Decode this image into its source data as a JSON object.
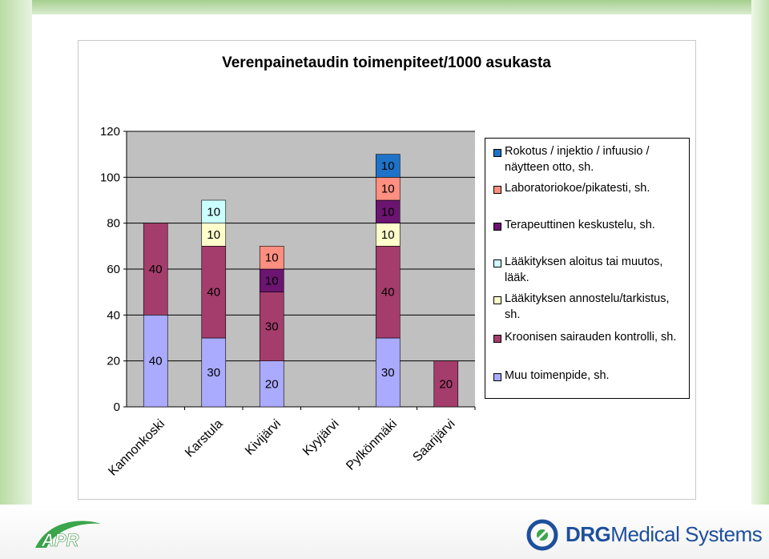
{
  "chart_data": {
    "type": "bar",
    "stacked": true,
    "title": "Verenpainetaudin toimenpiteet/1000 asukasta",
    "categories": [
      "Kannonkoski",
      "Karstula",
      "Kivijärvi",
      "Kyyjärvi",
      "Pylkönmäki",
      "Saarijärvi"
    ],
    "ylim": [
      0,
      120
    ],
    "yticks": [
      "0",
      "20",
      "40",
      "60",
      "80",
      "100",
      "120"
    ],
    "grid": "horizontal",
    "legend_position": "right",
    "series": [
      {
        "name": "Muu toimenpide, sh.",
        "color": "#aaaaff",
        "values": [
          40,
          30,
          20,
          0,
          30,
          0
        ]
      },
      {
        "name": "Kroonisen sairauden kontrolli, sh.",
        "color": "#a43d6b",
        "values": [
          40,
          40,
          30,
          0,
          40,
          20
        ]
      },
      {
        "name": "Lääkityksen annostelu/tarkistus, sh.",
        "color": "#ffffcc",
        "values": [
          0,
          10,
          0,
          0,
          10,
          0
        ]
      },
      {
        "name": "Lääkityksen aloitus tai muutos, lääk.",
        "color": "#ccffff",
        "values": [
          0,
          10,
          0,
          0,
          0,
          0
        ]
      },
      {
        "name": "Terapeuttinen keskustelu, sh.",
        "color": "#6b1470",
        "values": [
          0,
          0,
          10,
          0,
          10,
          0
        ]
      },
      {
        "name": "Laboratoriokoe/pikatesti, sh.",
        "color": "#ff8f80",
        "values": [
          0,
          0,
          10,
          0,
          10,
          0
        ]
      },
      {
        "name": "Rokotus / injektio / infuusio / näytteen otto, sh.",
        "color": "#1e73c8",
        "values": [
          0,
          0,
          0,
          0,
          10,
          0
        ]
      }
    ],
    "legend_order": [
      6,
      5,
      4,
      3,
      2,
      1,
      0
    ]
  },
  "logos": {
    "left": "APR",
    "right_bold": "DRG",
    "right_light": "Medical Systems"
  },
  "colors": {
    "plot_background": "#c0c0c0",
    "brand_green": "#3aa54a",
    "brand_blue": "#1d4f9c"
  }
}
